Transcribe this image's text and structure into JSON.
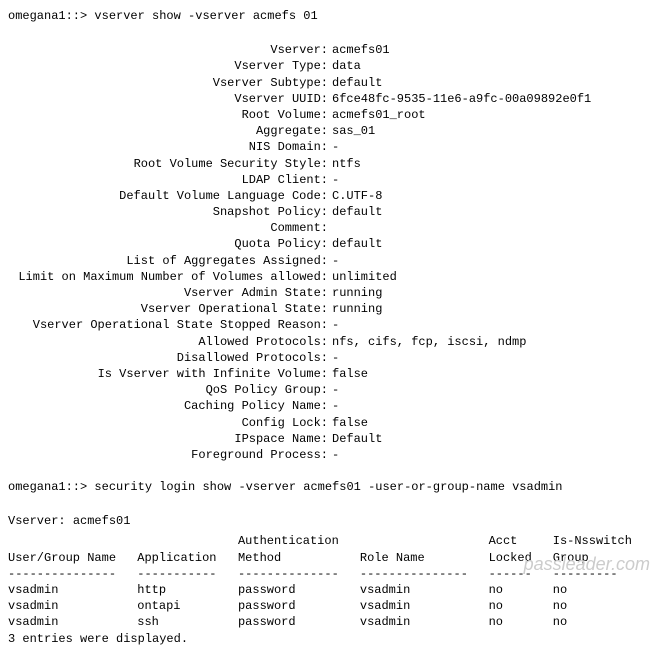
{
  "cmd1": {
    "prompt": "omegana1::>",
    "text": "vserver show -vserver acmefs 01"
  },
  "vserver": {
    "fields": [
      {
        "label": "Vserver:",
        "value": "acmefs01"
      },
      {
        "label": "Vserver Type:",
        "value": "data"
      },
      {
        "label": "Vserver Subtype:",
        "value": "default"
      },
      {
        "label": "Vserver UUID:",
        "value": "6fce48fc-9535-11e6-a9fc-00a09892e0f1"
      },
      {
        "label": "Root Volume:",
        "value": "acmefs01_root"
      },
      {
        "label": "Aggregate:",
        "value": "sas_01"
      },
      {
        "label": "NIS Domain:",
        "value": "-"
      },
      {
        "label": "Root Volume Security Style:",
        "value": "ntfs"
      },
      {
        "label": "LDAP Client:",
        "value": "-"
      },
      {
        "label": "Default Volume Language Code:",
        "value": "C.UTF-8"
      },
      {
        "label": "Snapshot Policy:",
        "value": "default"
      },
      {
        "label": "Comment:",
        "value": ""
      },
      {
        "label": "Quota Policy:",
        "value": "default"
      },
      {
        "label": "List of Aggregates Assigned:",
        "value": "-"
      },
      {
        "label": "Limit on Maximum Number of Volumes allowed:",
        "value": "unlimited"
      },
      {
        "label": "Vserver Admin State:",
        "value": "running"
      },
      {
        "label": "Vserver Operational State:",
        "value": "running"
      },
      {
        "label": "Vserver Operational State Stopped Reason:",
        "value": "-"
      },
      {
        "label": "Allowed Protocols:",
        "value": "nfs, cifs, fcp, iscsi, ndmp"
      },
      {
        "label": "Disallowed Protocols:",
        "value": "-"
      },
      {
        "label": "Is Vserver with Infinite Volume:",
        "value": "false"
      },
      {
        "label": "QoS Policy Group:",
        "value": "-"
      },
      {
        "label": "Caching Policy Name:",
        "value": "-"
      },
      {
        "label": "Config Lock:",
        "value": "false"
      },
      {
        "label": "IPspace Name:",
        "value": "Default"
      },
      {
        "label": "Foreground Process:",
        "value": "-"
      }
    ]
  },
  "cmd2": {
    "prompt": "omegana1::>",
    "text": "security login show -vserver acmefs01 -user-or-group-name vsadmin"
  },
  "vserver_header": {
    "label": "Vserver:",
    "value": "acmefs01"
  },
  "table": {
    "headers": {
      "user": {
        "l1": "",
        "l2": "User/Group Name"
      },
      "app": {
        "l1": "",
        "l2": "Application"
      },
      "auth": {
        "l1": "Authentication",
        "l2": "Method"
      },
      "role": {
        "l1": "",
        "l2": "Role Name"
      },
      "locked": {
        "l1": "Acct",
        "l2": "Locked"
      },
      "nss": {
        "l1": "Is-Nsswitch",
        "l2": "Group"
      }
    },
    "sep": {
      "user": "---------------",
      "app": "-----------",
      "auth": "--------------",
      "role": "---------------",
      "locked": "------",
      "nss": "---------"
    },
    "rows": [
      {
        "user": "vsadmin",
        "app": "http",
        "auth": "password",
        "role": "vsadmin",
        "locked": "no",
        "nss": "no"
      },
      {
        "user": "vsadmin",
        "app": "ontapi",
        "auth": "password",
        "role": "vsadmin",
        "locked": "no",
        "nss": "no"
      },
      {
        "user": "vsadmin",
        "app": "ssh",
        "auth": "password",
        "role": "vsadmin",
        "locked": "no",
        "nss": "no"
      }
    ],
    "footer": "3 entries were displayed."
  },
  "watermark": "passleader.com"
}
